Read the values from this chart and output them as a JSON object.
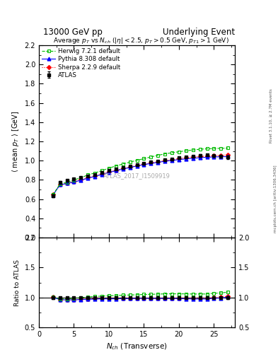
{
  "title_left": "13000 GeV pp",
  "title_right": "Underlying Event",
  "plot_title": "Average $p_T$ vs $N_{ch}$ ($|\\eta| < 2.5$, $p_T > 0.5$ GeV, $p_{T1} > 1$ GeV)",
  "xlabel": "$N_{ch}$ (Transverse)",
  "ylabel_main": "$\\langle$ mean $p_T$ $\\rangle$ [GeV]",
  "ylabel_ratio": "Ratio to ATLAS",
  "watermark": "ATLAS_2017_I1509919",
  "right_label": "Rivet 3.1.10, ≥ 2.7M events",
  "right_label2": "mcplots.cern.ch [arXiv:1306.3436]",
  "xlim": [
    0,
    28
  ],
  "ylim_main": [
    0.2,
    2.2
  ],
  "ylim_ratio": [
    0.5,
    2.0
  ],
  "atlas_x": [
    2,
    3,
    4,
    5,
    6,
    7,
    8,
    9,
    10,
    11,
    12,
    13,
    14,
    15,
    16,
    17,
    18,
    19,
    20,
    21,
    22,
    23,
    24,
    25,
    26,
    27
  ],
  "atlas_y": [
    0.635,
    0.775,
    0.792,
    0.808,
    0.822,
    0.842,
    0.857,
    0.873,
    0.895,
    0.913,
    0.928,
    0.944,
    0.958,
    0.97,
    0.985,
    0.997,
    1.008,
    1.018,
    1.028,
    1.038,
    1.048,
    1.055,
    1.06,
    1.05,
    1.048,
    1.035
  ],
  "atlas_yerr": [
    0.015,
    0.012,
    0.01,
    0.009,
    0.008,
    0.008,
    0.007,
    0.007,
    0.006,
    0.006,
    0.006,
    0.006,
    0.006,
    0.006,
    0.006,
    0.006,
    0.006,
    0.006,
    0.007,
    0.007,
    0.008,
    0.009,
    0.01,
    0.012,
    0.015,
    0.02
  ],
  "herwig_x": [
    2,
    3,
    4,
    5,
    6,
    7,
    8,
    9,
    10,
    11,
    12,
    13,
    14,
    15,
    16,
    17,
    18,
    19,
    20,
    21,
    22,
    23,
    24,
    25,
    26,
    27
  ],
  "herwig_y": [
    0.645,
    0.755,
    0.775,
    0.798,
    0.822,
    0.851,
    0.872,
    0.895,
    0.922,
    0.944,
    0.965,
    0.984,
    1.003,
    1.02,
    1.038,
    1.055,
    1.07,
    1.082,
    1.092,
    1.102,
    1.11,
    1.118,
    1.123,
    1.126,
    1.128,
    1.13
  ],
  "pythia_x": [
    2,
    3,
    4,
    5,
    6,
    7,
    8,
    9,
    10,
    11,
    12,
    13,
    14,
    15,
    16,
    17,
    18,
    19,
    20,
    21,
    22,
    23,
    24,
    25,
    26,
    27
  ],
  "pythia_y": [
    0.64,
    0.748,
    0.762,
    0.778,
    0.795,
    0.817,
    0.835,
    0.855,
    0.876,
    0.895,
    0.912,
    0.928,
    0.944,
    0.958,
    0.97,
    0.982,
    0.993,
    1.002,
    1.01,
    1.018,
    1.024,
    1.03,
    1.035,
    1.038,
    1.04,
    1.042
  ],
  "sherpa_x": [
    2,
    3,
    4,
    5,
    6,
    7,
    8,
    9,
    10,
    11,
    12,
    13,
    14,
    15,
    16,
    17,
    18,
    19,
    20,
    21,
    22,
    23,
    24,
    25,
    26,
    27
  ],
  "sherpa_y": [
    0.645,
    0.748,
    0.762,
    0.782,
    0.8,
    0.822,
    0.842,
    0.862,
    0.882,
    0.9,
    0.918,
    0.934,
    0.948,
    0.962,
    0.976,
    0.988,
    1.0,
    1.01,
    1.02,
    1.03,
    1.038,
    1.043,
    1.048,
    1.052,
    1.055,
    1.058
  ],
  "atlas_color": "#000000",
  "herwig_color": "#00bb00",
  "pythia_color": "#0000ff",
  "sherpa_color": "#ff0000"
}
